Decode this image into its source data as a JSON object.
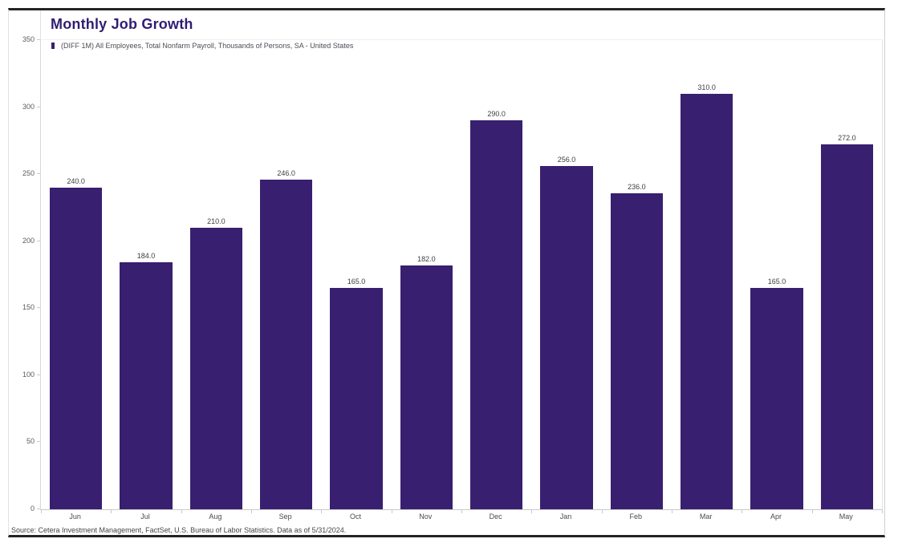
{
  "chart": {
    "title": "Monthly Job Growth",
    "legend_label": "(DIFF 1M) All Employees, Total Nonfarm Payroll, Thousands of Persons, SA - United States",
    "source_note": "Source: Cetera Investment Management, FactSet, U.S. Bureau of Labor Statistics. Data as of 5/31/2024.",
    "colors": {
      "bar": "#381f6f",
      "title": "#301d73",
      "frame_rule": "#242424"
    }
  },
  "chart_data": {
    "type": "bar",
    "title": "Monthly Job Growth",
    "series_name": "(DIFF 1M) All Employees, Total Nonfarm Payroll, Thousands of Persons, SA - United States",
    "categories": [
      "Jun",
      "Jul",
      "Aug",
      "Sep",
      "Oct",
      "Nov",
      "Dec",
      "Jan",
      "Feb",
      "Mar",
      "Apr",
      "May"
    ],
    "values": [
      240.0,
      184.0,
      210.0,
      246.0,
      165.0,
      182.0,
      290.0,
      256.0,
      236.0,
      310.0,
      165.0,
      272.0
    ],
    "value_labels": [
      "240.0",
      "184.0",
      "210.0",
      "246.0",
      "165.0",
      "182.0",
      "290.0",
      "256.0",
      "236.0",
      "310.0",
      "165.0",
      "272.0"
    ],
    "xlabel": "",
    "ylabel": "",
    "ylim": [
      0,
      350
    ],
    "yticks": [
      0,
      50,
      100,
      150,
      200,
      250,
      300,
      350
    ],
    "grid": false,
    "legend_position": "top-left",
    "bar_color": "#381f6f"
  }
}
